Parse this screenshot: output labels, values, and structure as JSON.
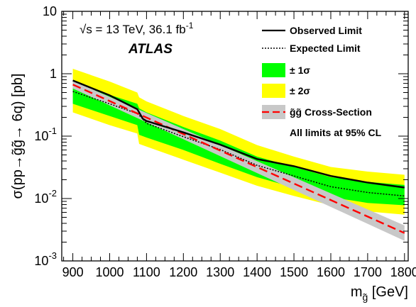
{
  "chart_data": {
    "type": "line",
    "title": "",
    "xlabel": "m",
    "xlabel_subscript": "g̃",
    "xlabel_unit": "[GeV]",
    "ylabel": "σ(pp→g̃g̃→ 6q) [pb]",
    "xlim": [
      870,
      1810
    ],
    "ylim": [
      0.001,
      10
    ],
    "yscale": "log",
    "x_ticks": [
      900,
      1000,
      1100,
      1200,
      1300,
      1400,
      1500,
      1600,
      1700,
      1800
    ],
    "y_ticks": [
      {
        "value": 0.001,
        "mantissa": "10",
        "exponent": "-3"
      },
      {
        "value": 0.01,
        "mantissa": "10",
        "exponent": "-2"
      },
      {
        "value": 0.1,
        "mantissa": "10",
        "exponent": "-1"
      },
      {
        "value": 1,
        "mantissa": "1",
        "exponent": ""
      },
      {
        "value": 10,
        "mantissa": "10",
        "exponent": ""
      }
    ],
    "energy_label": "√s = 13 TeV, 36.1 fb",
    "energy_label_exponent": "-1",
    "experiment_label": "ATLAS",
    "note": "All limits at 95% CL",
    "legend_position": "top-right",
    "legend": [
      {
        "key": "observed",
        "label": "Observed Limit"
      },
      {
        "key": "expected",
        "label": "Expected Limit"
      },
      {
        "key": "band1",
        "label": "± 1σ"
      },
      {
        "key": "band2",
        "label": "± 2σ"
      },
      {
        "key": "xsec",
        "label": "g̃g̃ Cross-Section"
      }
    ],
    "colors": {
      "observed": "#000000",
      "expected": "#000000",
      "band1": "#00ff00",
      "band2": "#ffff00",
      "xsec_line": "#ff0000",
      "xsec_band": "#c8c8c8"
    },
    "series": [
      {
        "key": "observed",
        "x": [
          900,
          1000,
          1075,
          1090,
          1100,
          1200,
          1300,
          1400,
          1500,
          1600,
          1700,
          1800
        ],
        "values": [
          0.78,
          0.45,
          0.27,
          0.19,
          0.175,
          0.115,
          0.073,
          0.043,
          0.033,
          0.023,
          0.018,
          0.015
        ]
      },
      {
        "key": "expected",
        "x": [
          900,
          1000,
          1075,
          1090,
          1100,
          1200,
          1300,
          1400,
          1500,
          1600,
          1700,
          1800
        ],
        "values": [
          0.52,
          0.33,
          0.23,
          0.19,
          0.16,
          0.098,
          0.061,
          0.034,
          0.023,
          0.0155,
          0.0125,
          0.011
        ]
      },
      {
        "key": "band1",
        "x": [
          900,
          1000,
          1075,
          1080,
          1100,
          1200,
          1300,
          1400,
          1500,
          1600,
          1700,
          1800
        ],
        "low": [
          0.33,
          0.21,
          0.15,
          0.105,
          0.095,
          0.06,
          0.036,
          0.022,
          0.015,
          0.0105,
          0.0085,
          0.0078
        ],
        "high": [
          0.72,
          0.46,
          0.33,
          0.28,
          0.24,
          0.14,
          0.085,
          0.047,
          0.032,
          0.022,
          0.0185,
          0.0165
        ]
      },
      {
        "key": "band2",
        "x": [
          900,
          1000,
          1075,
          1080,
          1100,
          1200,
          1300,
          1400,
          1500,
          1600,
          1700,
          1800
        ],
        "low": [
          0.24,
          0.15,
          0.11,
          0.075,
          0.068,
          0.042,
          0.026,
          0.016,
          0.011,
          0.0078,
          0.0062,
          0.0055
        ],
        "high": [
          1.2,
          0.75,
          0.5,
          0.42,
          0.36,
          0.21,
          0.13,
          0.072,
          0.047,
          0.032,
          0.027,
          0.024
        ]
      },
      {
        "key": "xsec",
        "x": [
          900,
          1800
        ],
        "values": [
          0.67,
          0.0028
        ],
        "low": [
          0.58,
          0.0021
        ],
        "high": [
          0.77,
          0.0037
        ]
      }
    ]
  }
}
